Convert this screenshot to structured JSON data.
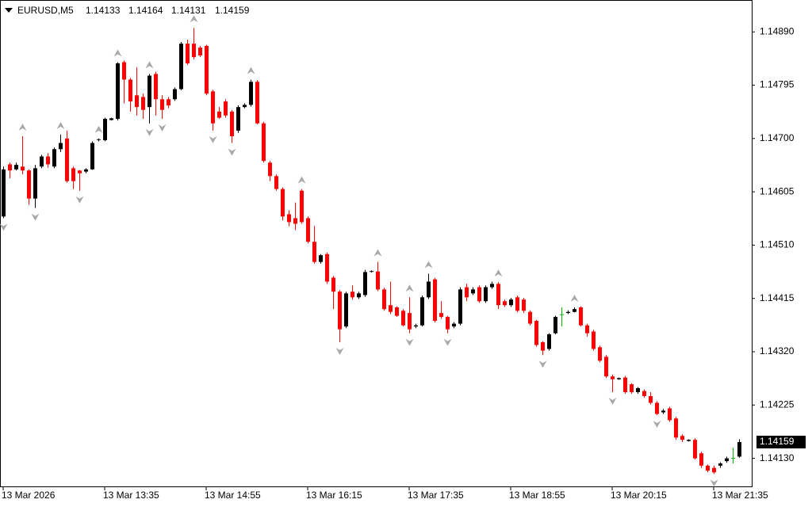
{
  "chart_data": {
    "type": "candlestick",
    "title": "EURUSD,M5",
    "categories": [
      "13 Mar 2026",
      null,
      null,
      null,
      null,
      null,
      null,
      null,
      null,
      null,
      null,
      null,
      null,
      null,
      null,
      null,
      "13 Mar 13:35",
      null,
      null,
      null,
      null,
      null,
      null,
      null,
      null,
      null,
      null,
      null,
      null,
      null,
      null,
      null,
      "13 Mar 14:55",
      null,
      null,
      null,
      null,
      null,
      null,
      null,
      null,
      null,
      null,
      null,
      null,
      null,
      null,
      null,
      "13 Mar 16:15",
      null,
      null,
      null,
      null,
      null,
      null,
      null,
      null,
      null,
      null,
      null,
      null,
      null,
      null,
      null,
      "13 Mar 17:35",
      null,
      null,
      null,
      null,
      null,
      null,
      null,
      null,
      null,
      null,
      null,
      null,
      null,
      null,
      null,
      "13 Mar 18:55",
      null,
      null,
      null,
      null,
      null,
      null,
      null,
      null,
      null,
      null,
      null,
      null,
      null,
      null,
      null,
      "13 Mar 20:15",
      null,
      null,
      null,
      null,
      null,
      null,
      null,
      null,
      null,
      null,
      null,
      null,
      null,
      null,
      null,
      "13 Mar 21:35",
      null,
      null,
      null,
      null
    ],
    "open": [
      1.14561,
      1.14654,
      1.14645,
      1.1465,
      1.14643,
      1.14593,
      1.1465,
      1.14668,
      1.1465,
      1.14681,
      1.147,
      1.14647,
      1.14643,
      1.14641,
      1.14645,
      1.14697,
      1.14697,
      1.14733,
      1.14735,
      1.14836,
      1.14805,
      1.14777,
      1.14774,
      1.14756,
      1.14815,
      1.1477,
      1.1477,
      1.1477,
      1.14788,
      1.14869,
      1.14869,
      1.14862,
      1.14865,
      1.14784,
      1.14748,
      1.14766,
      1.14748,
      1.14714,
      1.14756,
      1.1476,
      1.14801,
      1.14727,
      1.14657,
      1.14633,
      1.1461,
      1.14565,
      1.14558,
      1.14607,
      1.14558,
      1.14516,
      1.1448,
      1.14494,
      1.14452,
      1.14427,
      1.14365,
      1.14427,
      1.14417,
      1.14421,
      1.14462,
      1.14463,
      1.14431,
      1.14403,
      1.14399,
      1.14393,
      1.14389,
      1.14365,
      1.14367,
      1.14417,
      1.14449,
      1.14389,
      1.14382,
      1.14365,
      1.1437,
      1.14435,
      1.14424,
      1.14435,
      1.1441,
      1.14435,
      1.14441,
      1.1441,
      1.14403,
      1.14417,
      1.14413,
      1.14391,
      1.14375,
      1.14337,
      1.14325,
      1.14353,
      1.14386,
      1.14389,
      1.14391,
      1.14399,
      1.14367,
      1.14356,
      1.14328,
      1.14311,
      1.14276,
      1.14271,
      1.14274,
      1.14262,
      1.14248,
      1.1425,
      1.14241,
      1.14229,
      1.14212,
      1.14219,
      1.14201,
      1.1417,
      1.14161,
      1.14163,
      1.14139,
      1.14117,
      1.14113,
      1.14117,
      1.14125,
      1.1413,
      1.14133
    ],
    "high": [
      1.1465,
      1.14657,
      1.14657,
      1.14704,
      1.14645,
      1.14653,
      1.14671,
      1.14674,
      1.14684,
      1.14707,
      1.14714,
      1.1465,
      1.14644,
      1.14647,
      1.14695,
      1.147,
      1.14737,
      1.14737,
      1.14836,
      1.14839,
      1.14808,
      1.14827,
      1.1478,
      1.14815,
      1.14819,
      1.14777,
      1.14774,
      1.14791,
      1.14872,
      1.14876,
      1.14897,
      1.14865,
      1.14867,
      1.14787,
      1.14756,
      1.1477,
      1.14751,
      1.14759,
      1.14763,
      1.14805,
      1.14804,
      1.1473,
      1.1466,
      1.14636,
      1.14613,
      1.14572,
      1.14586,
      1.1461,
      1.14561,
      1.14544,
      1.14494,
      1.14497,
      1.14455,
      1.1443,
      1.14427,
      1.14438,
      1.14427,
      1.14466,
      1.14465,
      1.1448,
      1.14434,
      1.14445,
      1.14401,
      1.14396,
      1.14417,
      1.1437,
      1.1442,
      1.14459,
      1.14452,
      1.1441,
      1.14384,
      1.14373,
      1.14435,
      1.14441,
      1.14435,
      1.14438,
      1.14438,
      1.14445,
      1.14444,
      1.14413,
      1.14416,
      1.1442,
      1.14416,
      1.14394,
      1.14377,
      1.14339,
      1.14353,
      1.14384,
      1.14399,
      1.14394,
      1.14399,
      1.14401,
      1.1437,
      1.14359,
      1.14331,
      1.14314,
      1.14279,
      1.14274,
      1.14277,
      1.14264,
      1.14257,
      1.14253,
      1.14248,
      1.14232,
      1.14218,
      1.14222,
      1.14204,
      1.14173,
      1.14164,
      1.14166,
      1.14142,
      1.14119,
      1.14117,
      1.14123,
      1.14133,
      1.14149,
      1.14164
    ],
    "low": [
      1.14558,
      1.14629,
      1.14643,
      1.14636,
      1.14582,
      1.14576,
      1.14647,
      1.14648,
      1.14647,
      1.14676,
      1.14621,
      1.1461,
      1.14607,
      1.14638,
      1.14644,
      1.14695,
      1.14695,
      1.14732,
      1.14732,
      1.14763,
      1.14748,
      1.14741,
      1.14735,
      1.14727,
      1.14741,
      1.14735,
      1.14754,
      1.14767,
      1.14786,
      1.14831,
      1.14841,
      1.14845,
      1.14777,
      1.14714,
      1.14735,
      1.14737,
      1.14692,
      1.1471,
      1.14754,
      1.14757,
      1.14725,
      1.14657,
      1.14624,
      1.14607,
      1.14554,
      1.14544,
      1.14537,
      1.14548,
      1.14513,
      1.14477,
      1.14477,
      1.14441,
      1.14396,
      1.14337,
      1.14362,
      1.14413,
      1.14414,
      1.14418,
      1.14461,
      1.14428,
      1.14393,
      1.14387,
      1.14382,
      1.14365,
      1.14353,
      1.14362,
      1.14365,
      1.14414,
      1.14372,
      1.14379,
      1.14353,
      1.14362,
      1.14367,
      1.1441,
      1.14421,
      1.14407,
      1.14407,
      1.14432,
      1.14396,
      1.144,
      1.144,
      1.1439,
      1.14389,
      1.14367,
      1.14329,
      1.14314,
      1.14322,
      1.14351,
      1.14365,
      1.14387,
      1.1439,
      1.14365,
      1.14347,
      1.14322,
      1.14301,
      1.14273,
      1.14248,
      1.1427,
      1.14245,
      1.14245,
      1.14245,
      1.14238,
      1.14226,
      1.14207,
      1.14209,
      1.14195,
      1.14163,
      1.14159,
      1.1416,
      1.14128,
      1.14113,
      1.14105,
      1.14102,
      1.14113,
      1.14122,
      1.14121,
      1.14131
    ],
    "close": [
      1.14645,
      1.14643,
      1.14653,
      1.14643,
      1.14593,
      1.14647,
      1.14668,
      1.14654,
      1.14681,
      1.14692,
      1.14624,
      1.14624,
      1.14638,
      1.14645,
      1.14692,
      1.14698,
      1.14735,
      1.14736,
      1.14834,
      1.14805,
      1.14766,
      1.14756,
      1.14751,
      1.14812,
      1.1477,
      1.14751,
      1.14759,
      1.14788,
      1.14869,
      1.14834,
      1.14845,
      1.14848,
      1.1478,
      1.14727,
      1.14737,
      1.14741,
      1.14704,
      1.14756,
      1.1476,
      1.14801,
      1.14727,
      1.1466,
      1.14633,
      1.1461,
      1.14561,
      1.14551,
      1.14548,
      1.14551,
      1.14516,
      1.1448,
      1.14492,
      1.14445,
      1.14427,
      1.1436,
      1.14424,
      1.14417,
      1.14424,
      1.14462,
      1.14463,
      1.14431,
      1.14396,
      1.14391,
      1.14384,
      1.14367,
      1.1436,
      1.14367,
      1.14417,
      1.14445,
      1.14375,
      1.14382,
      1.1436,
      1.1437,
      1.14431,
      1.14417,
      1.14431,
      1.1441,
      1.14435,
      1.14441,
      1.14403,
      1.14403,
      1.14413,
      1.14393,
      1.14393,
      1.1437,
      1.14332,
      1.14322,
      1.14351,
      1.14382,
      1.14386,
      1.14391,
      1.14396,
      1.14367,
      1.14353,
      1.14325,
      1.14304,
      1.14276,
      1.14271,
      1.14273,
      1.14248,
      1.14248,
      1.14255,
      1.14241,
      1.14229,
      1.14209,
      1.14215,
      1.14198,
      1.14167,
      1.14163,
      1.14163,
      1.1413,
      1.14117,
      1.14108,
      1.14105,
      1.14121,
      1.1413,
      1.1413,
      1.14159
    ],
    "fractals_up": [
      3,
      9,
      15,
      18,
      23,
      30,
      39,
      47,
      59,
      64,
      67,
      78,
      90
    ],
    "fractals_down": [
      0,
      5,
      12,
      23,
      25,
      33,
      36,
      53,
      64,
      70,
      85,
      96,
      103,
      112
    ],
    "bull_color": "#000000",
    "bear_color": "#ff0000",
    "doji_color": "#00b400",
    "fractal_color": "#a8a8a8",
    "ylim": [
      1.1408,
      1.14944
    ],
    "yticks": [
      {
        "value": 1.1489,
        "label": "1.14890"
      },
      1.14795,
      {
        "value": 1.147,
        "label": "1.14700"
      },
      1.14605,
      {
        "value": 1.1451,
        "label": "1.14510"
      },
      1.14415,
      {
        "value": 1.1432,
        "label": "1.14320"
      },
      1.14225,
      {
        "value": 1.1413,
        "label": "1.14130"
      }
    ],
    "current_price": 1.14159
  }
}
